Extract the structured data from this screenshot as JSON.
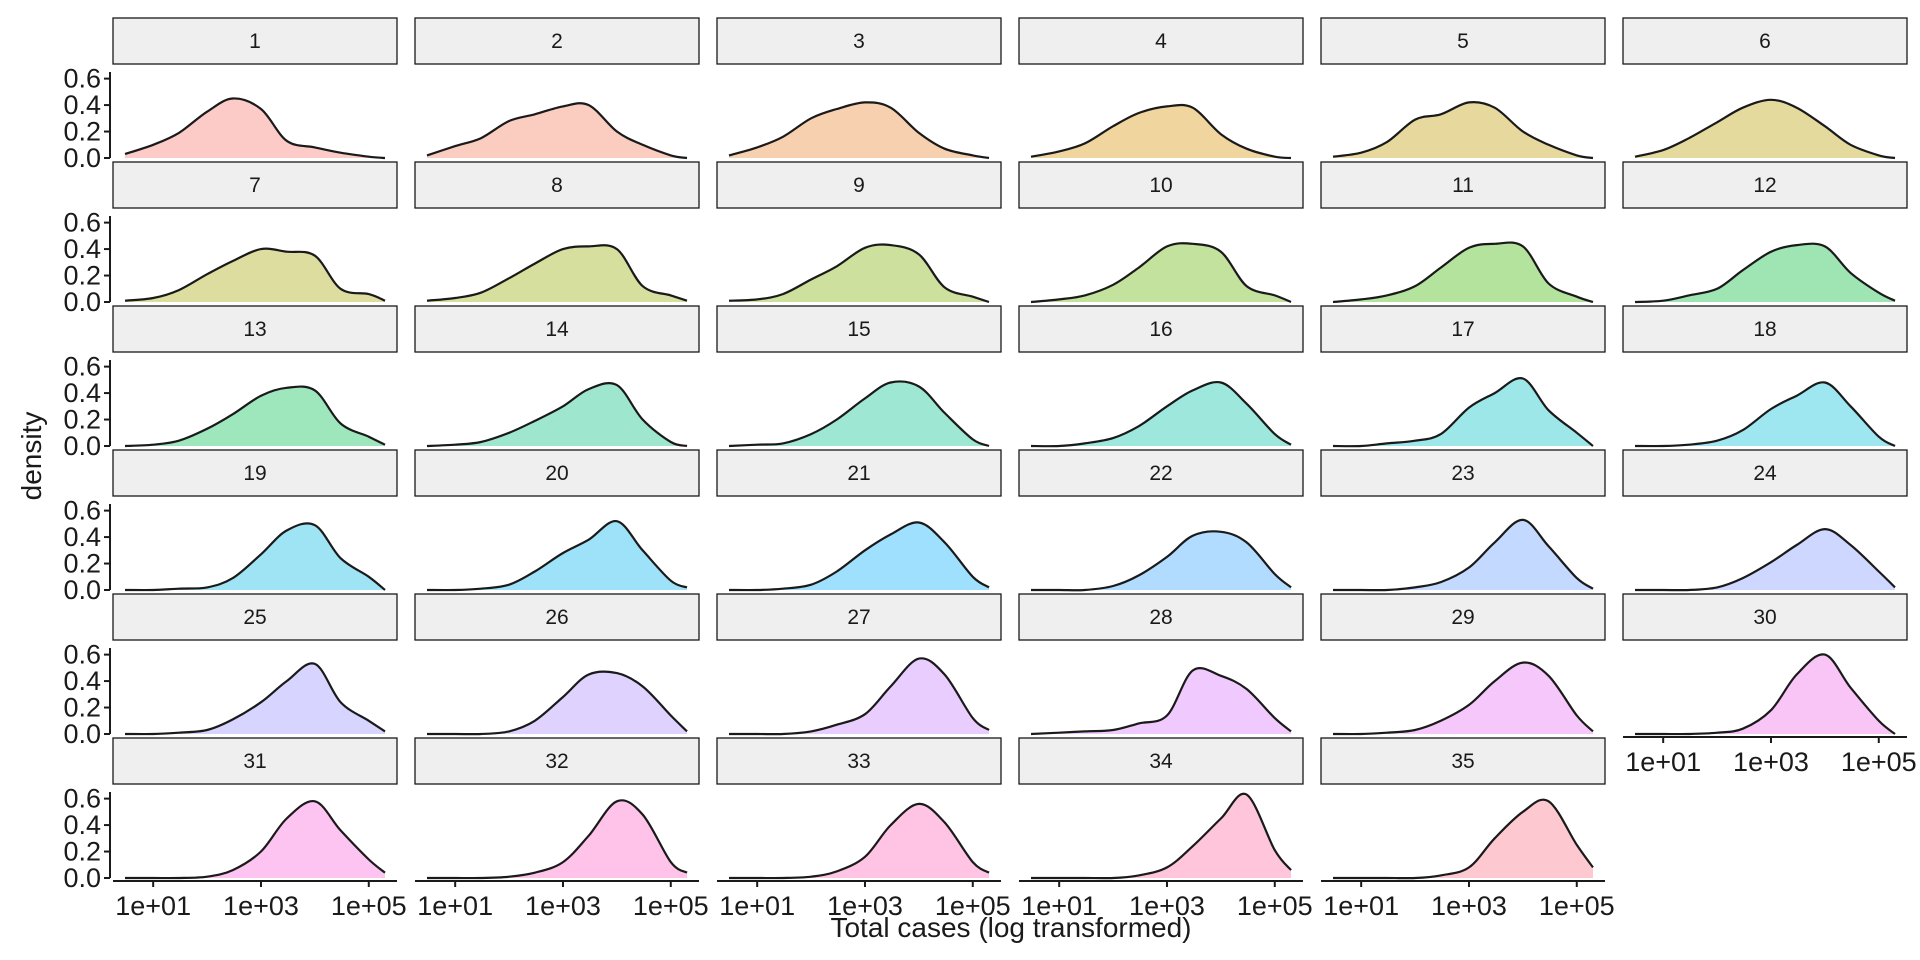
{
  "chart_data": {
    "type": "area",
    "facet": "density by panel",
    "xlabel": "Total cases (log transformed)",
    "ylabel": "density",
    "x_scale": "log10",
    "xlim": [
      3,
      200000
    ],
    "ylim": [
      0,
      0.65
    ],
    "x_ticks": [
      10,
      1000,
      100000
    ],
    "x_tick_labels": [
      "1e+01",
      "1e+03",
      "1e+05"
    ],
    "y_ticks": [
      0.0,
      0.2,
      0.4,
      0.6
    ],
    "y_tick_labels": [
      "0.0",
      "0.2",
      "0.4",
      "0.6"
    ],
    "grid": false,
    "legend": "none",
    "panels": [
      {
        "label": "1",
        "color": "#F8766D",
        "x": [
          3,
          10,
          30,
          100,
          300,
          1000,
          3000,
          10000,
          30000,
          100000,
          200000
        ],
        "y": [
          0.03,
          0.1,
          0.19,
          0.35,
          0.45,
          0.37,
          0.13,
          0.08,
          0.04,
          0.01,
          0.0
        ]
      },
      {
        "label": "2",
        "color": "#F37B59",
        "x": [
          3,
          10,
          30,
          100,
          300,
          1000,
          3000,
          10000,
          30000,
          100000,
          200000
        ],
        "y": [
          0.02,
          0.09,
          0.15,
          0.28,
          0.33,
          0.39,
          0.4,
          0.2,
          0.1,
          0.02,
          0.0
        ]
      },
      {
        "label": "3",
        "color": "#E9842C",
        "x": [
          3,
          10,
          30,
          100,
          300,
          1000,
          3000,
          10000,
          30000,
          100000,
          200000
        ],
        "y": [
          0.02,
          0.08,
          0.16,
          0.3,
          0.37,
          0.42,
          0.38,
          0.19,
          0.07,
          0.02,
          0.0
        ]
      },
      {
        "label": "4",
        "color": "#D89000",
        "x": [
          3,
          10,
          30,
          100,
          300,
          1000,
          3000,
          10000,
          30000,
          100000,
          200000
        ],
        "y": [
          0.01,
          0.05,
          0.11,
          0.24,
          0.34,
          0.39,
          0.38,
          0.18,
          0.07,
          0.01,
          0.0
        ]
      },
      {
        "label": "5",
        "color": "#C09B00",
        "x": [
          3,
          10,
          30,
          100,
          300,
          1000,
          3000,
          10000,
          30000,
          100000,
          200000
        ],
        "y": [
          0.01,
          0.04,
          0.12,
          0.29,
          0.33,
          0.42,
          0.38,
          0.2,
          0.1,
          0.02,
          0.0
        ]
      },
      {
        "label": "6",
        "color": "#B79F00",
        "x": [
          3,
          10,
          30,
          100,
          300,
          1000,
          3000,
          10000,
          30000,
          100000,
          200000
        ],
        "y": [
          0.01,
          0.06,
          0.15,
          0.27,
          0.38,
          0.44,
          0.38,
          0.24,
          0.1,
          0.02,
          0.0
        ]
      },
      {
        "label": "7",
        "color": "#A3A500",
        "x": [
          3,
          10,
          30,
          100,
          300,
          1000,
          3000,
          10000,
          30000,
          100000,
          200000
        ],
        "y": [
          0.01,
          0.03,
          0.09,
          0.21,
          0.31,
          0.4,
          0.38,
          0.35,
          0.1,
          0.06,
          0.01
        ]
      },
      {
        "label": "8",
        "color": "#93AA00",
        "x": [
          3,
          10,
          30,
          100,
          300,
          1000,
          3000,
          10000,
          30000,
          100000,
          200000
        ],
        "y": [
          0.01,
          0.03,
          0.07,
          0.18,
          0.29,
          0.4,
          0.42,
          0.4,
          0.12,
          0.05,
          0.01
        ]
      },
      {
        "label": "9",
        "color": "#7CAE00",
        "x": [
          3,
          10,
          30,
          100,
          300,
          1000,
          3000,
          10000,
          30000,
          100000,
          200000
        ],
        "y": [
          0.01,
          0.02,
          0.06,
          0.17,
          0.27,
          0.41,
          0.43,
          0.36,
          0.11,
          0.04,
          0.0
        ]
      },
      {
        "label": "10",
        "color": "#5EB300",
        "x": [
          3,
          10,
          30,
          100,
          300,
          1000,
          3000,
          10000,
          30000,
          100000,
          200000
        ],
        "y": [
          0.0,
          0.02,
          0.05,
          0.13,
          0.26,
          0.42,
          0.44,
          0.38,
          0.12,
          0.05,
          0.0
        ]
      },
      {
        "label": "11",
        "color": "#39B600",
        "x": [
          3,
          10,
          30,
          100,
          300,
          1000,
          3000,
          10000,
          30000,
          100000,
          200000
        ],
        "y": [
          0.0,
          0.02,
          0.05,
          0.12,
          0.26,
          0.41,
          0.44,
          0.42,
          0.14,
          0.04,
          0.0
        ]
      },
      {
        "label": "12",
        "color": "#00BA38",
        "x": [
          3,
          10,
          30,
          100,
          300,
          1000,
          3000,
          10000,
          30000,
          100000,
          200000
        ],
        "y": [
          0.0,
          0.01,
          0.05,
          0.1,
          0.24,
          0.38,
          0.43,
          0.42,
          0.22,
          0.07,
          0.01
        ]
      },
      {
        "label": "13",
        "color": "#00BC4E",
        "x": [
          3,
          10,
          30,
          100,
          300,
          1000,
          3000,
          10000,
          30000,
          100000,
          200000
        ],
        "y": [
          0.0,
          0.01,
          0.04,
          0.13,
          0.24,
          0.38,
          0.44,
          0.42,
          0.17,
          0.07,
          0.01
        ]
      },
      {
        "label": "14",
        "color": "#00BF7D",
        "x": [
          3,
          10,
          30,
          100,
          300,
          1000,
          3000,
          10000,
          30000,
          100000,
          200000
        ],
        "y": [
          0.0,
          0.01,
          0.03,
          0.1,
          0.19,
          0.3,
          0.43,
          0.46,
          0.2,
          0.03,
          0.0
        ]
      },
      {
        "label": "15",
        "color": "#00C08B",
        "x": [
          3,
          10,
          30,
          100,
          300,
          1000,
          3000,
          10000,
          30000,
          100000,
          200000
        ],
        "y": [
          0.0,
          0.01,
          0.02,
          0.09,
          0.2,
          0.36,
          0.48,
          0.45,
          0.25,
          0.05,
          0.0
        ]
      },
      {
        "label": "16",
        "color": "#00C1A3",
        "x": [
          3,
          10,
          30,
          100,
          300,
          1000,
          3000,
          10000,
          30000,
          100000,
          200000
        ],
        "y": [
          0.0,
          0.0,
          0.02,
          0.06,
          0.15,
          0.3,
          0.42,
          0.48,
          0.32,
          0.09,
          0.01
        ]
      },
      {
        "label": "17",
        "color": "#00BFC4",
        "x": [
          3,
          10,
          30,
          100,
          300,
          1000,
          3000,
          10000,
          30000,
          100000,
          200000
        ],
        "y": [
          0.0,
          0.0,
          0.02,
          0.04,
          0.09,
          0.29,
          0.4,
          0.51,
          0.27,
          0.1,
          0.0
        ]
      },
      {
        "label": "18",
        "color": "#00BCD8",
        "x": [
          3,
          10,
          30,
          100,
          300,
          1000,
          3000,
          10000,
          30000,
          100000,
          200000
        ],
        "y": [
          0.0,
          0.0,
          0.01,
          0.04,
          0.12,
          0.28,
          0.38,
          0.48,
          0.3,
          0.07,
          0.0
        ]
      },
      {
        "label": "19",
        "color": "#00B9E3",
        "x": [
          3,
          10,
          30,
          100,
          300,
          1000,
          3000,
          10000,
          30000,
          100000,
          200000
        ],
        "y": [
          0.0,
          0.0,
          0.01,
          0.02,
          0.09,
          0.27,
          0.45,
          0.49,
          0.24,
          0.1,
          0.0
        ]
      },
      {
        "label": "20",
        "color": "#00B4EF",
        "x": [
          3,
          10,
          30,
          100,
          300,
          1000,
          3000,
          10000,
          30000,
          100000,
          200000
        ],
        "y": [
          0.0,
          0.0,
          0.01,
          0.04,
          0.14,
          0.28,
          0.38,
          0.52,
          0.3,
          0.07,
          0.02
        ]
      },
      {
        "label": "21",
        "color": "#00ADFA",
        "x": [
          3,
          10,
          30,
          100,
          300,
          1000,
          3000,
          10000,
          30000,
          100000,
          200000
        ],
        "y": [
          0.0,
          0.0,
          0.01,
          0.04,
          0.14,
          0.3,
          0.42,
          0.51,
          0.36,
          0.1,
          0.02
        ]
      },
      {
        "label": "22",
        "color": "#35A2FF",
        "x": [
          3,
          10,
          30,
          100,
          300,
          1000,
          3000,
          10000,
          30000,
          100000,
          200000
        ],
        "y": [
          0.0,
          0.0,
          0.0,
          0.03,
          0.11,
          0.25,
          0.41,
          0.44,
          0.36,
          0.12,
          0.02
        ]
      },
      {
        "label": "23",
        "color": "#619CFF",
        "x": [
          3,
          10,
          30,
          100,
          300,
          1000,
          3000,
          10000,
          30000,
          100000,
          200000
        ],
        "y": [
          0.0,
          0.0,
          0.0,
          0.02,
          0.06,
          0.17,
          0.36,
          0.53,
          0.33,
          0.09,
          0.01
        ]
      },
      {
        "label": "24",
        "color": "#7F96FF",
        "x": [
          3,
          10,
          30,
          100,
          300,
          1000,
          3000,
          10000,
          30000,
          100000,
          200000
        ],
        "y": [
          0.0,
          0.0,
          0.0,
          0.02,
          0.09,
          0.21,
          0.34,
          0.46,
          0.34,
          0.14,
          0.02
        ]
      },
      {
        "label": "25",
        "color": "#9590FF",
        "x": [
          3,
          10,
          30,
          100,
          300,
          1000,
          3000,
          10000,
          30000,
          100000,
          200000
        ],
        "y": [
          0.0,
          0.0,
          0.01,
          0.03,
          0.11,
          0.24,
          0.4,
          0.53,
          0.24,
          0.1,
          0.02
        ]
      },
      {
        "label": "26",
        "color": "#AC88FF",
        "x": [
          3,
          10,
          30,
          100,
          300,
          1000,
          3000,
          10000,
          30000,
          100000,
          200000
        ],
        "y": [
          0.0,
          0.0,
          0.0,
          0.02,
          0.1,
          0.28,
          0.45,
          0.46,
          0.36,
          0.14,
          0.02
        ]
      },
      {
        "label": "27",
        "color": "#C77CFF",
        "x": [
          3,
          10,
          30,
          100,
          300,
          1000,
          3000,
          10000,
          30000,
          100000,
          200000
        ],
        "y": [
          0.0,
          0.0,
          0.0,
          0.02,
          0.07,
          0.15,
          0.36,
          0.57,
          0.45,
          0.12,
          0.03
        ]
      },
      {
        "label": "28",
        "color": "#D874FD",
        "x": [
          3,
          10,
          30,
          100,
          300,
          1000,
          3000,
          10000,
          30000,
          100000,
          200000
        ],
        "y": [
          0.0,
          0.01,
          0.02,
          0.03,
          0.08,
          0.14,
          0.48,
          0.44,
          0.34,
          0.12,
          0.02
        ]
      },
      {
        "label": "29",
        "color": "#E76BF3",
        "x": [
          3,
          10,
          30,
          100,
          300,
          1000,
          3000,
          10000,
          30000,
          100000,
          200000
        ],
        "y": [
          0.0,
          0.0,
          0.01,
          0.03,
          0.1,
          0.22,
          0.4,
          0.54,
          0.44,
          0.14,
          0.02
        ]
      },
      {
        "label": "30",
        "color": "#F066E9",
        "x": [
          3,
          10,
          30,
          100,
          300,
          1000,
          3000,
          10000,
          30000,
          100000,
          200000
        ],
        "y": [
          0.0,
          0.0,
          0.0,
          0.01,
          0.04,
          0.18,
          0.45,
          0.6,
          0.35,
          0.1,
          0.0
        ]
      },
      {
        "label": "31",
        "color": "#FA62DB",
        "x": [
          3,
          10,
          30,
          100,
          300,
          1000,
          3000,
          10000,
          30000,
          100000,
          200000
        ],
        "y": [
          0.0,
          0.0,
          0.0,
          0.01,
          0.06,
          0.2,
          0.45,
          0.58,
          0.36,
          0.14,
          0.04
        ]
      },
      {
        "label": "32",
        "color": "#FF61C9",
        "x": [
          3,
          10,
          30,
          100,
          300,
          1000,
          3000,
          10000,
          30000,
          100000,
          200000
        ],
        "y": [
          0.0,
          0.0,
          0.0,
          0.01,
          0.04,
          0.12,
          0.32,
          0.58,
          0.48,
          0.12,
          0.04
        ]
      },
      {
        "label": "33",
        "color": "#FF63B6",
        "x": [
          3,
          10,
          30,
          100,
          300,
          1000,
          3000,
          10000,
          30000,
          100000,
          200000
        ],
        "y": [
          0.0,
          0.0,
          0.0,
          0.01,
          0.05,
          0.16,
          0.4,
          0.56,
          0.42,
          0.12,
          0.04
        ]
      },
      {
        "label": "34",
        "color": "#FF68A1",
        "x": [
          3,
          10,
          30,
          100,
          300,
          1000,
          3000,
          10000,
          30000,
          100000,
          200000
        ],
        "y": [
          0.0,
          0.0,
          0.0,
          0.0,
          0.02,
          0.08,
          0.24,
          0.45,
          0.63,
          0.21,
          0.06
        ]
      },
      {
        "label": "35",
        "color": "#FD6F87",
        "x": [
          3,
          10,
          30,
          100,
          300,
          1000,
          3000,
          10000,
          30000,
          100000,
          200000
        ],
        "y": [
          0.0,
          0.0,
          0.0,
          0.0,
          0.02,
          0.08,
          0.3,
          0.5,
          0.58,
          0.25,
          0.08
        ]
      }
    ]
  }
}
